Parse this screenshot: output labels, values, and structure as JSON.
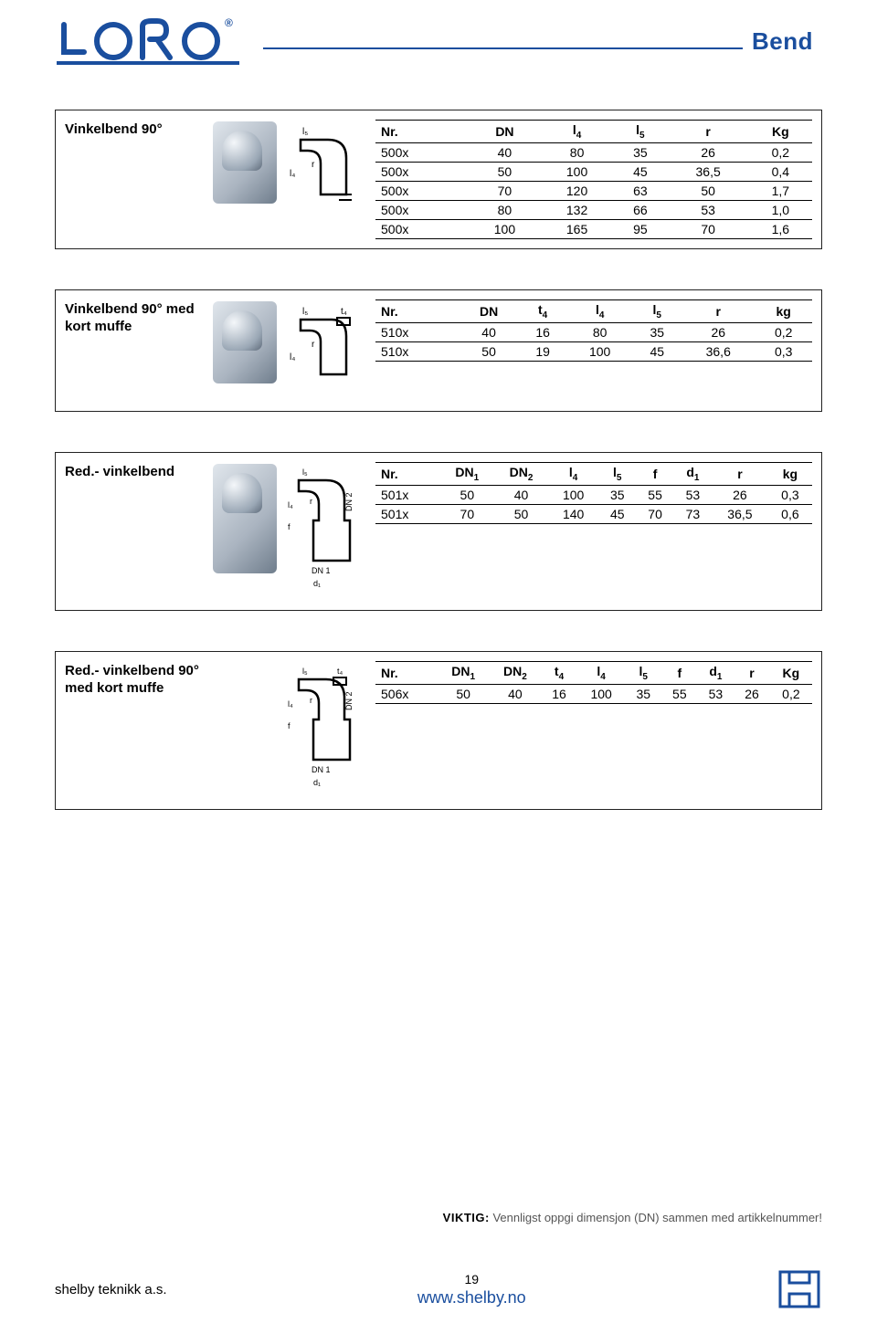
{
  "header": {
    "logo_text": "LORO",
    "logo_color": "#1a4e9e",
    "title": "Bend",
    "rule_color": "#1a4e9e"
  },
  "panels": [
    {
      "id": "vinkelbend90",
      "label": "Vinkelbend 90°",
      "diagram_labels": {
        "l5": "l5",
        "l4": "l4",
        "r": "r"
      },
      "table": {
        "columns": [
          "Nr.",
          "DN",
          "l4",
          "l5",
          "r",
          "Kg"
        ],
        "col_sub": [
          "",
          "",
          "4",
          "5",
          "",
          ""
        ],
        "rows": [
          [
            "500x",
            "40",
            "80",
            "35",
            "26",
            "0,2"
          ],
          [
            "500x",
            "50",
            "100",
            "45",
            "36,5",
            "0,4"
          ],
          [
            "500x",
            "70",
            "120",
            "63",
            "50",
            "1,7"
          ],
          [
            "500x",
            "80",
            "132",
            "66",
            "53",
            "1,0"
          ],
          [
            "500x",
            "100",
            "165",
            "95",
            "70",
            "1,6"
          ]
        ]
      }
    },
    {
      "id": "vinkelbend90_kort",
      "label": "Vinkelbend 90° med kort muffe",
      "diagram_labels": {
        "l5": "l5",
        "t4": "t4",
        "l4": "l4",
        "r": "r"
      },
      "table": {
        "columns": [
          "Nr.",
          "DN",
          "t4",
          "l4",
          "l5",
          "r",
          "kg"
        ],
        "col_sub": [
          "",
          "",
          "4",
          "4",
          "5",
          "",
          ""
        ],
        "rows": [
          [
            "510x",
            "40",
            "16",
            "80",
            "35",
            "26",
            "0,2"
          ],
          [
            "510x",
            "50",
            "19",
            "100",
            "45",
            "36,6",
            "0,3"
          ]
        ]
      }
    },
    {
      "id": "red_vinkelbend",
      "label": "Red.- vinkelbend",
      "diagram_labels": {
        "l5": "l5",
        "l4": "l4",
        "f": "f",
        "dn2": "DN 2",
        "dn1": "DN 1",
        "d1": "d1",
        "r": "r"
      },
      "table": {
        "columns": [
          "Nr.",
          "DN1",
          "DN2",
          "l4",
          "l5",
          "f",
          "d1",
          "r",
          "kg"
        ],
        "col_sub": [
          "",
          "1",
          "2",
          "4",
          "5",
          "",
          "1",
          "",
          ""
        ],
        "rows": [
          [
            "501x",
            "50",
            "40",
            "100",
            "35",
            "55",
            "53",
            "26",
            "0,3"
          ],
          [
            "501x",
            "70",
            "50",
            "140",
            "45",
            "70",
            "73",
            "36,5",
            "0,6"
          ]
        ]
      }
    },
    {
      "id": "red_vinkelbend_kort",
      "label": "Red.- vinkelbend 90° med kort muffe",
      "diagram_labels": {
        "l5": "l5",
        "t4": "t4",
        "l4": "l4",
        "f": "f",
        "dn2": "DN 2",
        "dn1": "DN 1",
        "d1": "d1",
        "r": "r"
      },
      "table": {
        "columns": [
          "Nr.",
          "DN1",
          "DN2",
          "t4",
          "l4",
          "l5",
          "f",
          "d1",
          "r",
          "Kg"
        ],
        "col_sub": [
          "",
          "1",
          "2",
          "4",
          "4",
          "5",
          "",
          "1",
          "",
          ""
        ],
        "rows": [
          [
            "506x",
            "50",
            "40",
            "16",
            "100",
            "35",
            "55",
            "53",
            "26",
            "0,2"
          ]
        ]
      }
    }
  ],
  "note": {
    "bold": "VIKTIG:",
    "text": "Vennligst oppgi dimensjon (DN) sammen med artikkelnummer!"
  },
  "footer": {
    "left": "shelby teknikk a.s.",
    "page": "19",
    "url": "www.shelby.no",
    "url_color": "#1a4e9e",
    "logo_color": "#1a4e9e"
  },
  "style": {
    "page_bg": "#ffffff",
    "border_color": "#000000",
    "font_family": "Arial",
    "body_fontsize": 14,
    "header_title_fontsize": 26
  }
}
